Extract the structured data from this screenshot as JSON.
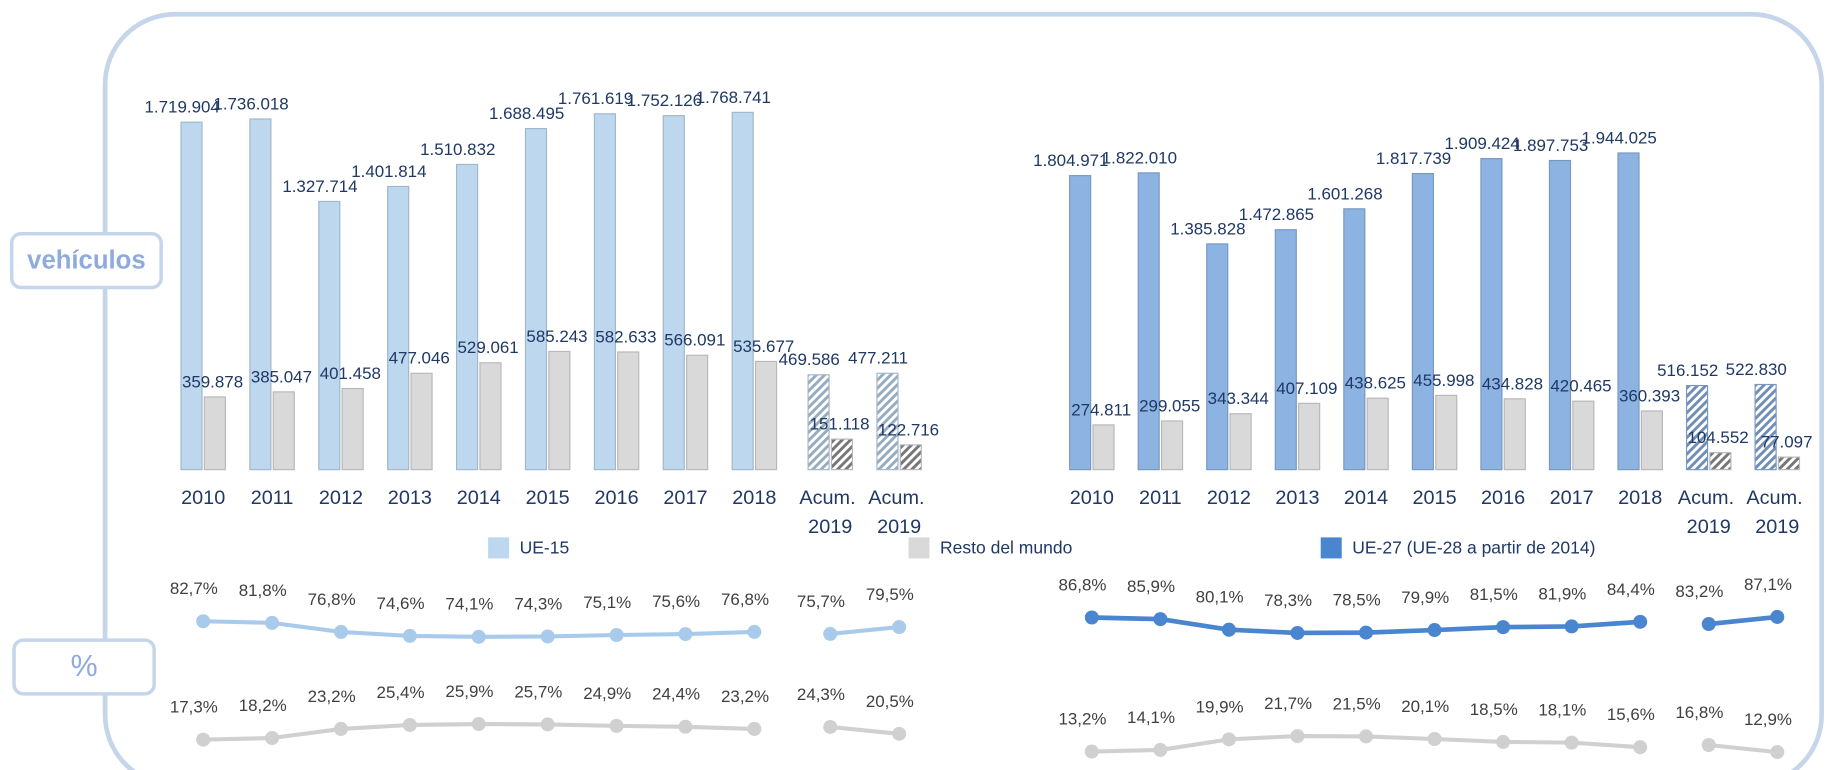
{
  "side_labels": [
    "vehículos",
    "%"
  ],
  "chart_data": [
    {
      "type": "bar",
      "categories": [
        "2010",
        "2011",
        "2012",
        "2013",
        "2014",
        "2015",
        "2016",
        "2017",
        "2018",
        "Acum. 2019",
        "Acum. 2019"
      ],
      "ylim": [
        0,
        2000000
      ],
      "series": [
        {
          "name": "UE-15",
          "color": "#bdd7ee",
          "values": [
            1719904,
            1736018,
            1327714,
            1401814,
            1510832,
            1688495,
            1761619,
            1752126,
            1768741,
            469586,
            477211
          ],
          "value_labels": [
            "1.719.904",
            "1.736.018",
            "1.327.714",
            "1.401.814",
            "1.510.832",
            "1.688.495",
            "1.761.619",
            "1.752.126",
            "1.768.741",
            "469.586",
            "477.211"
          ]
        },
        {
          "name": "Resto del mundo",
          "color": "#d9d9d9",
          "values": [
            359878,
            385047,
            401458,
            477046,
            529061,
            585243,
            582633,
            566091,
            535677,
            151118,
            122716
          ],
          "value_labels": [
            "359.878",
            "385.047",
            "401.458",
            "477.046",
            "529.061",
            "585.243",
            "582.633",
            "566.091",
            "535.677",
            "151.118",
            "122.716"
          ]
        }
      ]
    },
    {
      "type": "bar",
      "categories": [
        "2010",
        "2011",
        "2012",
        "2013",
        "2014",
        "2015",
        "2016",
        "2017",
        "2018",
        "Acum. 2019",
        "Acum. 2019"
      ],
      "ylim": [
        0,
        2000000
      ],
      "series": [
        {
          "name": "UE-27 (UE-28 a partir de 2014)",
          "color": "#8db3e2",
          "values": [
            1804971,
            1822010,
            1385828,
            1472865,
            1601268,
            1817739,
            1909424,
            1897753,
            1944025,
            516152,
            522830
          ],
          "value_labels": [
            "1.804.971",
            "1.822.010",
            "1.385.828",
            "1.472.865",
            "1.601.268",
            "1.817.739",
            "1.909.424",
            "1.897.753",
            "1.944.025",
            "516.152",
            "522.830"
          ]
        },
        {
          "color": "#d9d9d9",
          "values": [
            274811,
            299055,
            343344,
            407109,
            438625,
            455998,
            434828,
            420465,
            360393,
            104552,
            77097
          ],
          "value_labels": [
            "274.811",
            "299.055",
            "343.344",
            "407.109",
            "438.625",
            "455.998",
            "434.828",
            "420.465",
            "360.393",
            "104.552",
            "77.097"
          ]
        }
      ]
    },
    {
      "type": "line",
      "ylim": [
        0,
        100
      ],
      "series": [
        {
          "color": "#a9cbeb",
          "values": [
            82.7,
            81.8,
            76.8,
            74.6,
            74.1,
            74.3,
            75.1,
            75.6,
            76.8,
            75.7,
            79.5
          ],
          "value_labels": [
            "82,7%",
            "81,8%",
            "76,8%",
            "74,6%",
            "74,1%",
            "74,3%",
            "75,1%",
            "75,6%",
            "76,8%",
            "75,7%",
            "79,5%"
          ]
        },
        {
          "color": "#d0d0d0",
          "values": [
            17.3,
            18.2,
            23.2,
            25.4,
            25.9,
            25.7,
            24.9,
            24.4,
            23.2,
            24.3,
            20.5
          ],
          "value_labels": [
            "17,3%",
            "18,2%",
            "23,2%",
            "25,4%",
            "25,9%",
            "25,7%",
            "24,9%",
            "24,4%",
            "23,2%",
            "24,3%",
            "20,5%"
          ]
        }
      ]
    },
    {
      "type": "line",
      "ylim": [
        0,
        100
      ],
      "series": [
        {
          "color": "#4a86d0",
          "values": [
            86.8,
            85.9,
            80.1,
            78.3,
            78.5,
            79.9,
            81.5,
            81.9,
            84.4,
            83.2,
            87.1
          ],
          "value_labels": [
            "86,8%",
            "85,9%",
            "80,1%",
            "78,3%",
            "78,5%",
            "79,9%",
            "81,5%",
            "81,9%",
            "84,4%",
            "83,2%",
            "87,1%"
          ]
        },
        {
          "color": "#d0d0d0",
          "values": [
            13.2,
            14.1,
            19.9,
            21.7,
            21.5,
            20.1,
            18.5,
            18.1,
            15.6,
            16.8,
            12.9
          ],
          "value_labels": [
            "13,2%",
            "14,1%",
            "19,9%",
            "21,7%",
            "21,5%",
            "20,1%",
            "18,5%",
            "18,1%",
            "15,6%",
            "16,8%",
            "12,9%"
          ]
        }
      ]
    }
  ]
}
